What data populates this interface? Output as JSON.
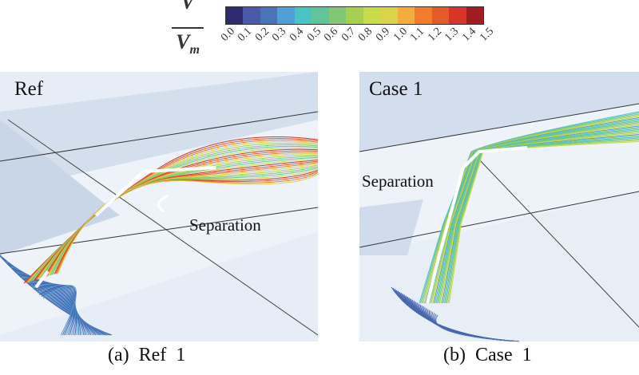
{
  "colorbar": {
    "label_numerator": "V",
    "label_denominator": "V",
    "label_subscript": "m",
    "ticks": [
      "0.0",
      "0.1",
      "0.2",
      "0.3",
      "0.4",
      "0.5",
      "0.6",
      "0.7",
      "0.8",
      "0.9",
      "1.0",
      "1.1",
      "1.2",
      "1.3",
      "1.4",
      "1.5"
    ],
    "colors": [
      "#2e2a6e",
      "#4a5aa8",
      "#4a74b8",
      "#4ea0d6",
      "#48c4c4",
      "#62c49a",
      "#82c874",
      "#a8d050",
      "#c8dc48",
      "#dcd448",
      "#f4ac3c",
      "#f07c2c",
      "#e45a28",
      "#d83428",
      "#a01c20"
    ]
  },
  "panels": [
    {
      "label": "Ref",
      "annotation": "Separation",
      "caption": "(a)  Ref  1"
    },
    {
      "label": "Case 1",
      "annotation": "Separation",
      "caption": "(b)  Case  1"
    }
  ]
}
